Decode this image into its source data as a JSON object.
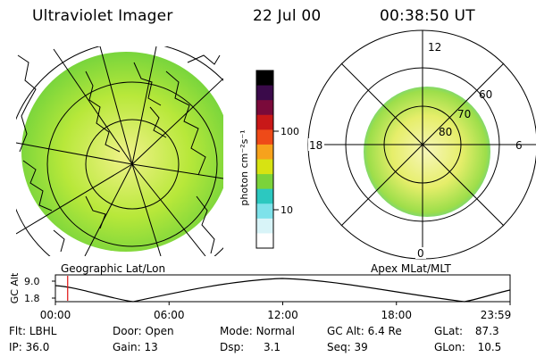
{
  "header": {
    "title": "Ultraviolet Imager",
    "date": "22 Jul 00",
    "time": "00:38:50 UT"
  },
  "colorbar": {
    "unit_label": "photon cm⁻²s⁻¹",
    "ticks": [
      "100",
      "10"
    ],
    "colors": [
      "#000000",
      "#3a0a4a",
      "#7a0a3a",
      "#c81818",
      "#ee4a18",
      "#f7a21c",
      "#d7e312",
      "#7bd33a",
      "#2cc8c0",
      "#7ee2ea",
      "#d8f4f8",
      "#ffffff"
    ]
  },
  "geo_panel": {
    "label": "Geographic Lat/Lon",
    "fill_colors": {
      "outer": "#6fd23c",
      "mid": "#b8e83a",
      "inner": "#f0f28a"
    }
  },
  "polar_panel": {
    "label": "Apex MLat/MLT",
    "mlt_labels": [
      "12",
      "18",
      "6",
      "0"
    ],
    "mlat_labels": [
      "60",
      "70",
      "80"
    ]
  },
  "timeline": {
    "y_axis_label": "GC Alt",
    "y_ticks": [
      "9.0",
      "1.8"
    ],
    "x_ticks": [
      "00:00",
      "06:00",
      "12:00",
      "18:00",
      "23:59"
    ],
    "current_time_fraction": 0.027,
    "marker_color": "#e01010"
  },
  "info": {
    "flt_label": "Flt:",
    "flt_value": "LBHL",
    "ip_label": "IP:",
    "ip_value": "36.0",
    "door_label": "Door:",
    "door_value": "Open",
    "gain_label": "Gain:",
    "gain_value": "13",
    "mode_label": "Mode:",
    "mode_value": "Normal",
    "dsp_label": "Dsp:",
    "dsp_value": "3.1",
    "gcalt_label": "GC Alt:",
    "gcalt_value": "6.4 Re",
    "seq_label": "Seq:",
    "seq_value": "39",
    "glat_label": "GLat:",
    "glat_value": "87.3",
    "glon_label": "GLon:",
    "glon_value": "10.5"
  }
}
